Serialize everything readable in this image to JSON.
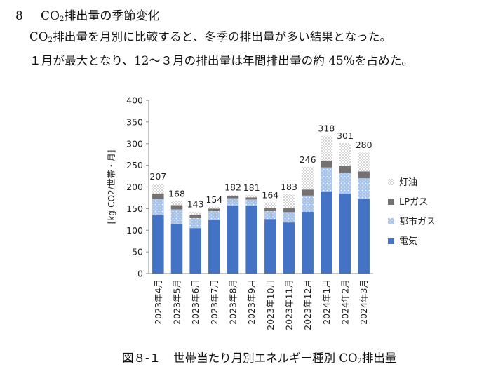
{
  "section": {
    "number": "8",
    "title_prefix": "CO",
    "title_sub": "2",
    "title_suffix": "排出量の季節変化"
  },
  "paragraph1": {
    "prefix": "CO",
    "sub": "2",
    "suffix": "排出量を月別に比較すると、冬季の排出量が多い結果となった。"
  },
  "paragraph2": "１月が最大となり、12～３月の排出量は年間排出量の約 45%を占めた。",
  "caption": {
    "figure": "図８-１",
    "text_prefix": "世帯当たり月別エネルギー種別 CO",
    "text_sub": "2",
    "text_suffix": "排出量"
  },
  "chart_data": {
    "type": "bar",
    "stacked": true,
    "categories": [
      "2023年4月",
      "2023年5月",
      "2023年6月",
      "2023年7月",
      "2023年8月",
      "2023年9月",
      "2023年10月",
      "2023年11月",
      "2023年12月",
      "2024年1月",
      "2024年2月",
      "2024年3月"
    ],
    "ylabel": "[kg-CO2/世帯・月]",
    "ylim": [
      0,
      400
    ],
    "yticks": [
      0,
      50,
      100,
      150,
      200,
      250,
      300,
      350,
      400
    ],
    "grid": false,
    "legend_position": "right",
    "series": [
      {
        "name": "電気",
        "color": "#4472c4",
        "pattern": "solid",
        "values": [
          135,
          115,
          105,
          124,
          157,
          157,
          126,
          118,
          143,
          190,
          185,
          172
        ]
      },
      {
        "name": "都市ガス",
        "color": "#a9c4eb",
        "pattern": "dots",
        "values": [
          37,
          33,
          23,
          20,
          17,
          14,
          18,
          24,
          37,
          55,
          48,
          48
        ]
      },
      {
        "name": "LPガス",
        "color": "#767171",
        "pattern": "solid",
        "values": [
          13,
          10,
          8,
          6,
          5,
          5,
          7,
          9,
          14,
          16,
          16,
          16
        ]
      },
      {
        "name": "灯油",
        "color": "#bfbfbf",
        "pattern": "dots",
        "values": [
          22,
          10,
          7,
          4,
          3,
          5,
          13,
          32,
          52,
          57,
          52,
          44
        ]
      }
    ],
    "totals": [
      207,
      168,
      143,
      154,
      182,
      181,
      164,
      183,
      246,
      318,
      301,
      280
    ],
    "legend_order": [
      "灯油",
      "LPガス",
      "都市ガス",
      "電気"
    ]
  }
}
